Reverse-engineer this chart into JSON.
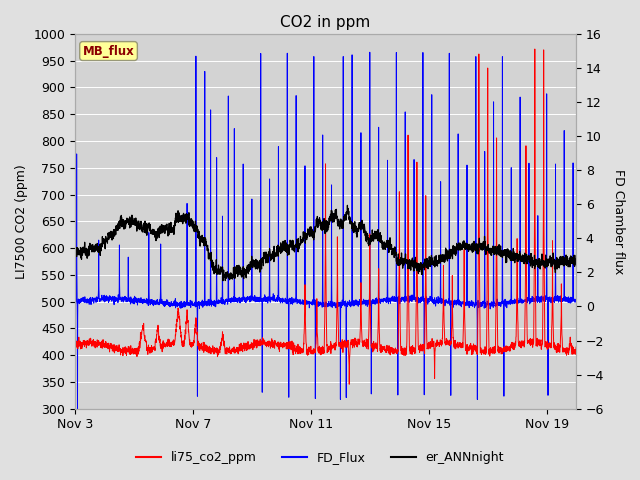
{
  "title": "CO2 in ppm",
  "ylabel_left": "LI7500 CO2 (ppm)",
  "ylabel_right": "FD Chamber flux",
  "ylim_left": [
    300,
    1000
  ],
  "ylim_right": [
    -6,
    16
  ],
  "xlim": [
    0,
    17
  ],
  "xtick_labels": [
    "Nov 3",
    "Nov 7",
    "Nov 11",
    "Nov 15",
    "Nov 19"
  ],
  "xtick_positions": [
    0,
    4,
    8,
    12,
    16
  ],
  "ytick_left": [
    300,
    350,
    400,
    450,
    500,
    550,
    600,
    650,
    700,
    750,
    800,
    850,
    900,
    950,
    1000
  ],
  "ytick_right": [
    -6,
    -4,
    -2,
    0,
    2,
    4,
    6,
    8,
    10,
    12,
    14,
    16
  ],
  "bg_color": "#e0e0e0",
  "plot_bg_color": "#d3d3d3",
  "grid_color": "#ffffff",
  "line_red": "#ff0000",
  "line_blue": "#0000ff",
  "line_black": "#000000",
  "mb_flux_label": "MB_flux",
  "mb_flux_bg": "#ffff99",
  "mb_flux_border": "#aaaaaa",
  "legend_labels": [
    "li75_co2_ppm",
    "FD_Flux",
    "er_ANNnight"
  ],
  "legend_colors": [
    "#ff0000",
    "#0000ff",
    "#000000"
  ],
  "figsize": [
    6.4,
    4.8
  ],
  "dpi": 100
}
